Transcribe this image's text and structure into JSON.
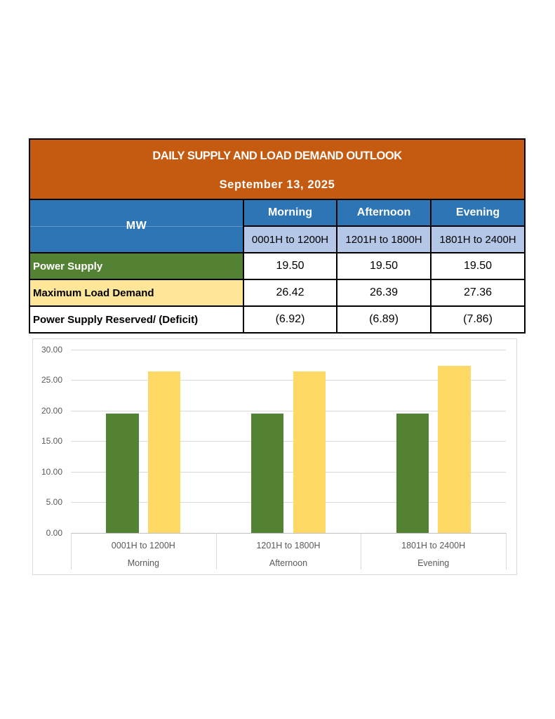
{
  "document": {
    "background": "#FFFFFF"
  },
  "table": {
    "title": "DAILY SUPPLY AND LOAD DEMAND OUTLOOK",
    "date": "September 13, 2025",
    "unit_label": "MW",
    "columns": [
      {
        "period": "Morning",
        "hours": "0001H to 1200H"
      },
      {
        "period": "Afternoon",
        "hours": "1201H to 1800H"
      },
      {
        "period": "Evening",
        "hours": "1801H to 2400H"
      }
    ],
    "rows": [
      {
        "label": "Power Supply",
        "values": [
          "19.50",
          "19.50",
          "19.50"
        ]
      },
      {
        "label": "Maximum Load Demand",
        "values": [
          "26.42",
          "26.39",
          "27.36"
        ]
      },
      {
        "label": "Power Supply Reserved/ (Deficit)",
        "values": [
          "(6.92)",
          "(6.89)",
          "(7.86)"
        ]
      }
    ],
    "colors": {
      "title_bg": "#C55A11",
      "header_bg": "#2E75B6",
      "subheader_bg": "#B4C7E7",
      "supply_bg": "#548235",
      "demand_bg": "#FFE699",
      "border": "#000000"
    }
  },
  "chart_data": {
    "type": "bar",
    "categories": [
      {
        "hours": "0001H to 1200H",
        "period": "Morning"
      },
      {
        "hours": "1201H to 1800H",
        "period": "Afternoon"
      },
      {
        "hours": "1801H to 2400H",
        "period": "Evening"
      }
    ],
    "series": [
      {
        "name": "Power Supply",
        "color": "#548235",
        "values": [
          19.5,
          19.5,
          19.5
        ]
      },
      {
        "name": "Maximum Load Demand",
        "color": "#FFD966",
        "values": [
          26.42,
          26.39,
          27.36
        ]
      }
    ],
    "title": "",
    "xlabel": "",
    "ylabel": "",
    "ylim": [
      0,
      30
    ],
    "ytick_step": 5,
    "ytick_labels": [
      "0.00",
      "5.00",
      "10.00",
      "15.00",
      "20.00",
      "25.00",
      "30.00"
    ],
    "grid": true,
    "legend": "none",
    "gridline_color": "#D9D9D9",
    "axis_color": "#BFBFBF",
    "tick_text_color": "#595959"
  }
}
